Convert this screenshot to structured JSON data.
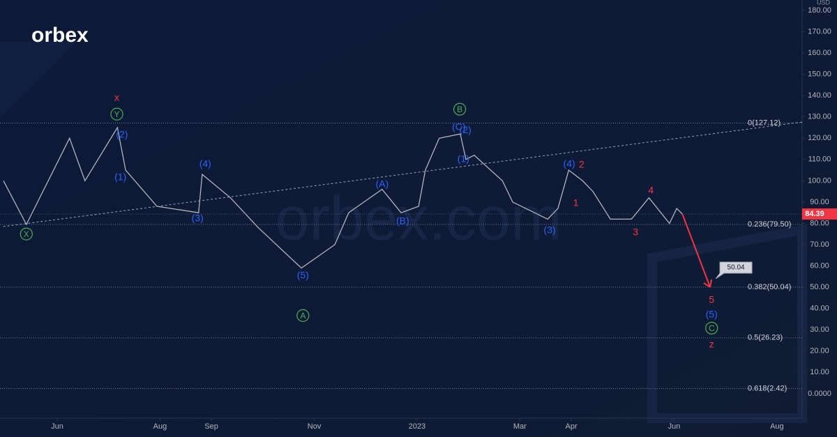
{
  "chart_data": {
    "type": "line",
    "logo": "orbex",
    "watermark": "orbex.com",
    "currency": "USD",
    "xlim": [
      -1.113,
      14.49
    ],
    "xticks": [
      {
        "value": 0,
        "label": "Jun"
      },
      {
        "value": 2,
        "label": "Aug"
      },
      {
        "value": 3,
        "label": "Sep"
      },
      {
        "value": 5,
        "label": "Nov"
      },
      {
        "value": 7,
        "label": "2023"
      },
      {
        "value": 9,
        "label": "Mar"
      },
      {
        "value": 10,
        "label": "Apr"
      },
      {
        "value": 12,
        "label": "Jun"
      },
      {
        "value": 14,
        "label": "Aug"
      }
    ],
    "ylim": [
      -11.5,
      184.9
    ],
    "yticks": [
      {
        "value": 0,
        "label": "0.0000"
      },
      {
        "value": 10,
        "label": "10.00"
      },
      {
        "value": 20,
        "label": "20.00"
      },
      {
        "value": 30,
        "label": "30.00"
      },
      {
        "value": 40,
        "label": "40.00"
      },
      {
        "value": 50,
        "label": "50.00"
      },
      {
        "value": 60,
        "label": "60.00"
      },
      {
        "value": 70,
        "label": "70.00"
      },
      {
        "value": 80,
        "label": "80.00"
      },
      {
        "value": 90,
        "label": "90.00"
      },
      {
        "value": 100,
        "label": "100.00"
      },
      {
        "value": 110,
        "label": "110.00"
      },
      {
        "value": 120,
        "label": "120.00"
      },
      {
        "value": 130,
        "label": "130.00"
      },
      {
        "value": 140,
        "label": "140.00"
      },
      {
        "value": 150,
        "label": "150.00"
      },
      {
        "value": 160,
        "label": "160.00"
      },
      {
        "value": 170,
        "label": "170.00"
      },
      {
        "value": 180,
        "label": "180.00"
      }
    ],
    "series": [
      {
        "color": "#b2b5be",
        "x": [
          -1.045,
          -0.6,
          0.24,
          0.54,
          1.17,
          1.33,
          1.94,
          2.75,
          2.82,
          3.37,
          3.91,
          4.75,
          5.4,
          5.67,
          6.32,
          6.69,
          7.03,
          7.16,
          7.43,
          7.84,
          7.95,
          8.11,
          8.66,
          8.86,
          9.54,
          9.74,
          9.95,
          10.22,
          10.42,
          10.76,
          11.17,
          11.51,
          11.91,
          12.05,
          12.16
        ],
        "values": [
          100,
          79.5,
          120,
          100,
          125,
          105,
          88,
          85,
          103,
          92,
          78,
          59,
          70,
          85,
          96,
          85,
          88,
          105,
          120,
          122,
          110,
          112,
          100,
          90,
          82,
          87,
          105,
          100,
          95,
          82,
          82,
          92,
          80,
          87,
          84.39
        ]
      }
    ],
    "projection": {
      "color": "#f23645",
      "x": [
        12.16,
        12.7
      ],
      "values": [
        84.39,
        50.04
      ]
    },
    "trendline": {
      "color": "#9aa3b5",
      "x": [
        -1.05,
        14.49
      ],
      "values": [
        78.5,
        127.6
      ]
    },
    "price_label": {
      "value": 84.39,
      "label": "84.39",
      "color": "#f23645"
    },
    "target_label": {
      "x": 12.7,
      "value": 50.04,
      "label": "50.04"
    },
    "fib_levels": [
      {
        "value": 127.12,
        "label": "0(127.12)"
      },
      {
        "value": 79.5,
        "label": "0.236(79.50)"
      },
      {
        "value": 50.04,
        "label": "0.382(50.04)"
      },
      {
        "value": 26.23,
        "label": "0.5(26.23)"
      },
      {
        "value": 2.42,
        "label": "0.618(2.42)"
      }
    ],
    "annotations": [
      {
        "text": "x",
        "x": 1.16,
        "y": 139.1,
        "color": "#f23645"
      },
      {
        "text": "Y",
        "x": 1.16,
        "y": 131.3,
        "color": "#4caf50",
        "circled": true
      },
      {
        "text": "X",
        "x": -0.6,
        "y": 75,
        "color": "#4caf50",
        "circled": true
      },
      {
        "text": "(2)",
        "x": 1.26,
        "y": 121.8,
        "color": "#2962ff"
      },
      {
        "text": "(1)",
        "x": 1.23,
        "y": 101.8,
        "color": "#2962ff"
      },
      {
        "text": "(3)",
        "x": 2.73,
        "y": 82.5,
        "color": "#2962ff"
      },
      {
        "text": "(4)",
        "x": 2.88,
        "y": 108,
        "color": "#2962ff"
      },
      {
        "text": "(5)",
        "x": 4.78,
        "y": 55.6,
        "color": "#2962ff"
      },
      {
        "text": "A",
        "x": 4.78,
        "y": 36.7,
        "color": "#4caf50",
        "circled": true
      },
      {
        "text": "(A)",
        "x": 6.32,
        "y": 98.5,
        "color": "#2962ff"
      },
      {
        "text": "(B)",
        "x": 6.72,
        "y": 81.2,
        "color": "#2962ff"
      },
      {
        "text": "B",
        "x": 7.83,
        "y": 133.6,
        "color": "#4caf50",
        "circled": true
      },
      {
        "text": "(C)",
        "x": 7.81,
        "y": 125.4,
        "color": "#2962ff"
      },
      {
        "text": "(2)",
        "x": 7.94,
        "y": 124,
        "color": "#2962ff"
      },
      {
        "text": "(1)",
        "x": 7.9,
        "y": 110.3,
        "color": "#2962ff"
      },
      {
        "text": "(4)",
        "x": 9.96,
        "y": 108,
        "color": "#2962ff"
      },
      {
        "text": "2",
        "x": 10.2,
        "y": 107.7,
        "color": "#f23645"
      },
      {
        "text": "1",
        "x": 10.09,
        "y": 89.7,
        "color": "#f23645"
      },
      {
        "text": "(3)",
        "x": 9.58,
        "y": 76.9,
        "color": "#2962ff"
      },
      {
        "text": "3",
        "x": 11.25,
        "y": 75.9,
        "color": "#f23645"
      },
      {
        "text": "4",
        "x": 11.55,
        "y": 95.6,
        "color": "#f23645"
      },
      {
        "text": "5",
        "x": 12.73,
        "y": 44.2,
        "color": "#f23645"
      },
      {
        "text": "(5)",
        "x": 12.73,
        "y": 37.3,
        "color": "#2962ff"
      },
      {
        "text": "C",
        "x": 12.73,
        "y": 30.8,
        "color": "#4caf50",
        "circled": true
      },
      {
        "text": "z",
        "x": 12.73,
        "y": 23.2,
        "color": "#f23645"
      }
    ]
  }
}
